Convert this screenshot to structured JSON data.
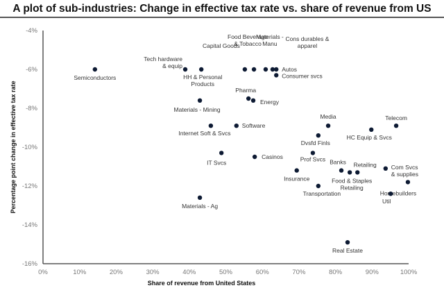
{
  "chart_data": {
    "type": "scatter",
    "title": "A plot of sub-industries:  Change in effective tax rate vs. share of revenue from US",
    "xlabel": "Share of revenue from United States",
    "ylabel": "Percentage point change in effective tax rate",
    "xlim": [
      0,
      100
    ],
    "ylim": [
      -16,
      -4
    ],
    "xticks": [
      "0%",
      "10%",
      "20%",
      "30%",
      "40%",
      "50%",
      "60%",
      "70%",
      "80%",
      "90%",
      "100%"
    ],
    "yticks": [
      "-4%",
      "-6%",
      "-8%",
      "-10%",
      "-12%",
      "-14%",
      "-16%"
    ],
    "grid": false,
    "marker_color": "#0d1a33",
    "points": [
      {
        "label": "Semiconductors",
        "x": 14.2,
        "y": -6.0
      },
      {
        "label": "Tech hardware\n& equip",
        "x": 38.9,
        "y": -6.0
      },
      {
        "label": "HH & Personal\nProducts",
        "x": 43.3,
        "y": -6.0
      },
      {
        "label": "Capital Goods",
        "x": 55.2,
        "y": -6.0
      },
      {
        "label": "Food Beverage\n& Tobacco",
        "x": 57.7,
        "y": -6.0
      },
      {
        "label": "Materials -\nManu",
        "x": 60.9,
        "y": -6.0
      },
      {
        "label": "Cons durables &\napparel",
        "x": 62.8,
        "y": -6.0
      },
      {
        "label": "Autos",
        "x": 63.8,
        "y": -6.0
      },
      {
        "label": "Consumer svcs",
        "x": 63.8,
        "y": -6.3
      },
      {
        "label": "Pharma",
        "x": 56.2,
        "y": -7.5
      },
      {
        "label": "Energy",
        "x": 57.5,
        "y": -7.6
      },
      {
        "label": "Materials - Mining",
        "x": 42.9,
        "y": -7.6
      },
      {
        "label": "Internet Soft & Svcs",
        "x": 45.9,
        "y": -8.9
      },
      {
        "label": "Software",
        "x": 52.9,
        "y": -8.9
      },
      {
        "label": "IT Svcs",
        "x": 48.8,
        "y": -10.3
      },
      {
        "label": "Casinos",
        "x": 57.9,
        "y": -10.5
      },
      {
        "label": "Insurance",
        "x": 69.4,
        "y": -11.2
      },
      {
        "label": "Media",
        "x": 78.0,
        "y": -8.9
      },
      {
        "label": "Dvsfd Finls",
        "x": 75.3,
        "y": -9.4
      },
      {
        "label": "Telecom",
        "x": 96.6,
        "y": -8.9
      },
      {
        "label": "HC Equip & Svcs",
        "x": 89.8,
        "y": -9.1
      },
      {
        "label": "Prof Svcs",
        "x": 73.8,
        "y": -10.3
      },
      {
        "label": "Banks",
        "x": 81.6,
        "y": -11.2
      },
      {
        "label": "Food & Staples\nRetailing",
        "x": 83.9,
        "y": -11.3
      },
      {
        "label": "Retailing",
        "x": 86.0,
        "y": -11.3
      },
      {
        "label": "Com Svcs\n& supplies",
        "x": 93.7,
        "y": -11.1
      },
      {
        "label": "Homebuilders",
        "x": 99.8,
        "y": -11.8
      },
      {
        "label": "Util",
        "x": 95.1,
        "y": -12.4
      },
      {
        "label": "Transportation",
        "x": 75.3,
        "y": -12.0
      },
      {
        "label": "Materials - Ag",
        "x": 42.9,
        "y": -12.6
      },
      {
        "label": "Real Estate",
        "x": 83.3,
        "y": -14.9
      }
    ]
  }
}
